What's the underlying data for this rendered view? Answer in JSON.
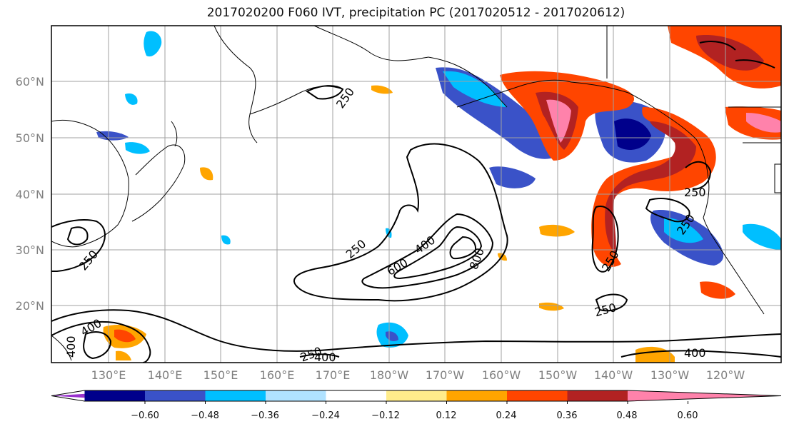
{
  "title": "2017020200 F060 IVT, precipitation PC (2017020512 - 2017020612)",
  "map": {
    "lat_labels": [
      "60°N",
      "50°N",
      "40°N",
      "30°N",
      "20°N"
    ],
    "lon_labels": [
      "130°E",
      "140°E",
      "150°E",
      "160°E",
      "170°E",
      "180°W",
      "170°W",
      "160°W",
      "150°W",
      "140°W",
      "130°W",
      "120°W"
    ],
    "contour_labels": [
      "250",
      "250",
      "250",
      "250",
      "250",
      "250",
      "250",
      "250",
      "400",
      "400",
      "400",
      "600",
      "800",
      "400",
      "400"
    ],
    "colors": {
      "frame": "#000000",
      "grid": "#a0a0a0",
      "coast": "#000000",
      "contour": "#000000"
    }
  },
  "colorbar": {
    "tick_labels": [
      "−0.60",
      "−0.48",
      "−0.36",
      "−0.24",
      "−0.12",
      "0.12",
      "0.24",
      "0.36",
      "0.48",
      "0.60"
    ],
    "colors": [
      "#9932cc",
      "#00008b",
      "#3a52c8",
      "#00bfff",
      "#b0e2ff",
      "#ffffff",
      "#ffec8b",
      "#ffa500",
      "#ff4500",
      "#b22222",
      "#ff82ab"
    ]
  }
}
